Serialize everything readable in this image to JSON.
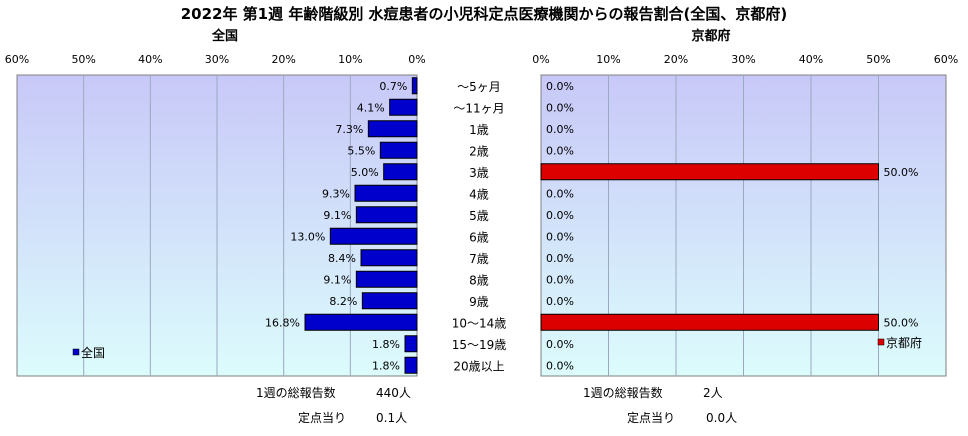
{
  "title": "2022年 第1週 年齢階級別 水痘患者の小児科定点医療機関からの報告割合(全国、京都府)",
  "age_groups": [
    "～5ヶ月",
    "～11ヶ月",
    "1歳",
    "2歳",
    "3歳",
    "4歳",
    "5歳",
    "6歳",
    "7歳",
    "8歳",
    "9歳",
    "10～14歳",
    "15～19歳",
    "20歳以上"
  ],
  "colors": {
    "national": "#0000cc",
    "kyoto": "#dd0000",
    "plot_top": "#c8c8f8",
    "plot_bottom": "#dcfcfc"
  },
  "chart_data": [
    {
      "type": "bar",
      "title": "全国",
      "orientation": "horizontal-reversed",
      "categories": [
        "～5ヶ月",
        "～11ヶ月",
        "1歳",
        "2歳",
        "3歳",
        "4歳",
        "5歳",
        "6歳",
        "7歳",
        "8歳",
        "9歳",
        "10～14歳",
        "15～19歳",
        "20歳以上"
      ],
      "series": [
        {
          "name": "全国",
          "values": [
            0.7,
            4.1,
            7.3,
            5.5,
            5.0,
            9.3,
            9.1,
            13.0,
            8.4,
            9.1,
            8.2,
            16.8,
            1.8,
            1.8
          ]
        }
      ],
      "value_labels": [
        "0.7%",
        "4.1%",
        "7.3%",
        "5.5%",
        "5.0%",
        "9.3%",
        "9.1%",
        "13.0%",
        "8.4%",
        "9.1%",
        "8.2%",
        "16.8%",
        "1.8%",
        "1.8%"
      ],
      "xlim": [
        0,
        60
      ],
      "ticks": [
        "60%",
        "50%",
        "40%",
        "30%",
        "20%",
        "10%",
        "0%"
      ],
      "grid": true,
      "legend": "bottom-left"
    },
    {
      "type": "bar",
      "title": "京都府",
      "orientation": "horizontal",
      "categories": [
        "～5ヶ月",
        "～11ヶ月",
        "1歳",
        "2歳",
        "3歳",
        "4歳",
        "5歳",
        "6歳",
        "7歳",
        "8歳",
        "9歳",
        "10～14歳",
        "15～19歳",
        "20歳以上"
      ],
      "series": [
        {
          "name": "京都府",
          "values": [
            0,
            0,
            0,
            0,
            50,
            0,
            0,
            0,
            0,
            0,
            0,
            50,
            0,
            0
          ]
        }
      ],
      "value_labels": [
        "0.0%",
        "0.0%",
        "0.0%",
        "0.0%",
        "50.0%",
        "0.0%",
        "0.0%",
        "0.0%",
        "0.0%",
        "0.0%",
        "0.0%",
        "50.0%",
        "0.0%",
        "0.0%"
      ],
      "xlim": [
        0,
        60
      ],
      "ticks": [
        "0%",
        "10%",
        "20%",
        "30%",
        "40%",
        "50%",
        "60%"
      ],
      "grid": true,
      "legend": "bottom-right"
    }
  ],
  "footer": {
    "national_total_label": "1週の総報告数",
    "national_total_value": "440人",
    "national_per_label": "定点当り",
    "national_per_value": "0.1人",
    "kyoto_total_label": "1週の総報告数",
    "kyoto_total_value": "2人",
    "kyoto_per_label": "定点当り",
    "kyoto_per_value": "0.0人"
  }
}
